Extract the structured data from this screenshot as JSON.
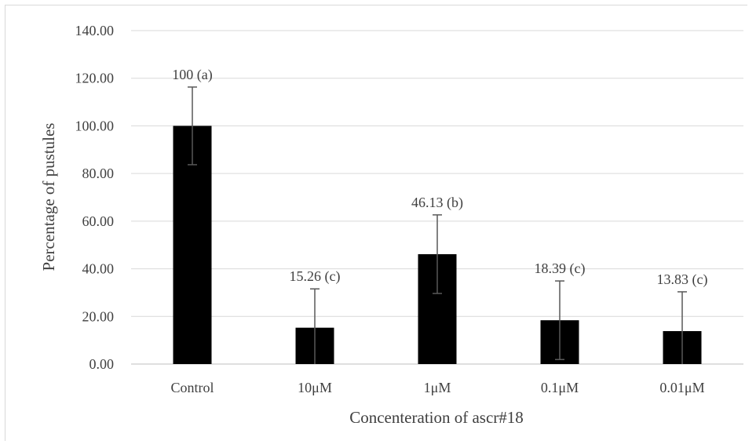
{
  "chart_data": {
    "type": "bar",
    "title": "",
    "xlabel": "Concenteration of ascr#18",
    "ylabel": "Percentage of pustules",
    "categories": [
      "Control",
      "10μM",
      "1μM",
      "0.1μM",
      "0.01μM"
    ],
    "values": [
      100,
      15.26,
      46.13,
      18.39,
      13.83
    ],
    "errors": [
      16.3,
      16.3,
      16.5,
      16.5,
      16.5
    ],
    "data_labels": [
      "100 (a)",
      "15.26 (c)",
      "46.13 (b)",
      "18.39 (c)",
      "13.83 (c)"
    ],
    "ylim": [
      0,
      140
    ],
    "yticks": [
      "0.00",
      "20.00",
      "40.00",
      "60.00",
      "80.00",
      "100.00",
      "120.00",
      "140.00"
    ],
    "grid": true,
    "colors": {
      "bar": "#000000",
      "grid": "#d9d9d9",
      "error_bar": "#595959",
      "text": "#404040"
    }
  }
}
